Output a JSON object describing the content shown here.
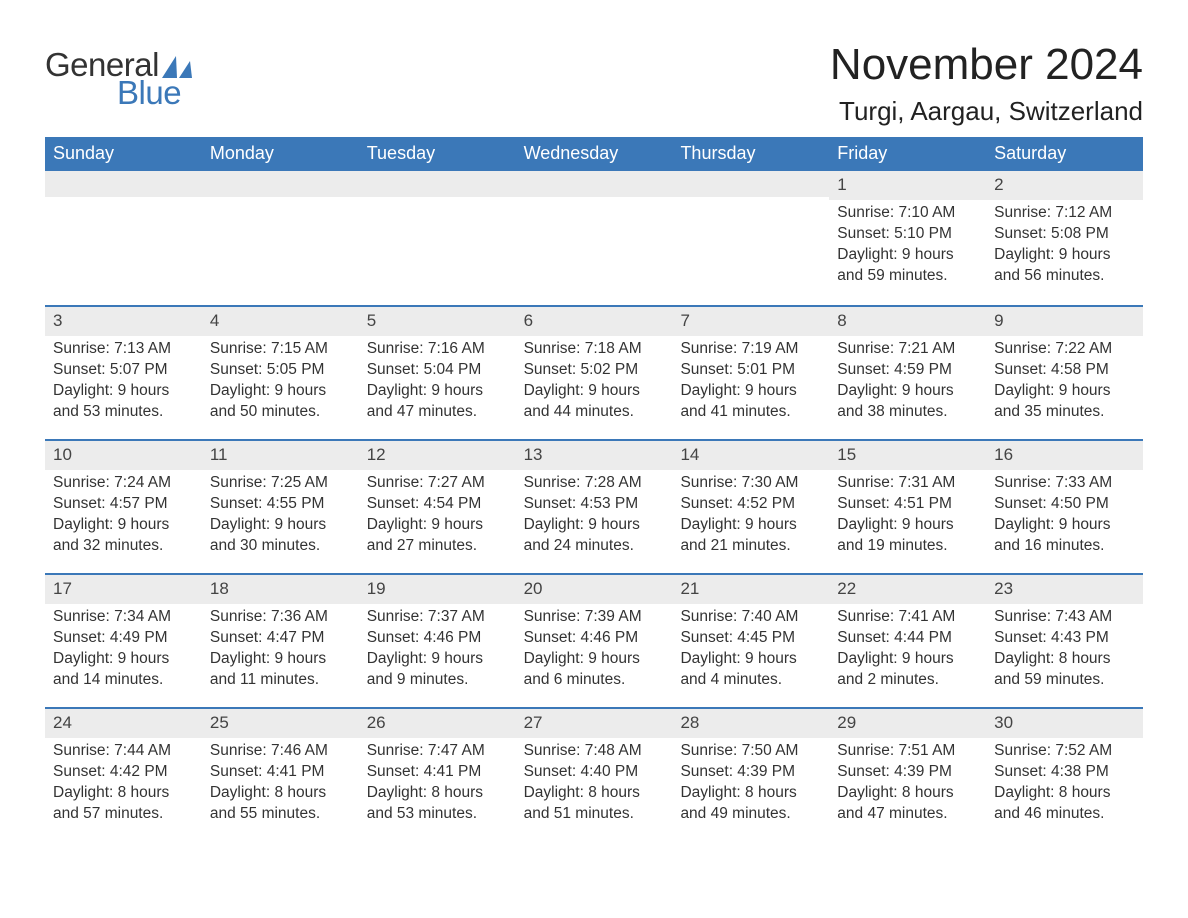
{
  "logo": {
    "text_general": "General",
    "text_blue": "Blue",
    "sail_color": "#3b78b8",
    "general_color": "#333333",
    "blue_color": "#3b78b8"
  },
  "header": {
    "month_title": "November 2024",
    "location": "Turgi, Aargau, Switzerland"
  },
  "colors": {
    "header_bg": "#3b78b8",
    "header_text": "#ffffff",
    "daynum_bg": "#ececec",
    "border": "#3b78b8",
    "body_text": "#333333",
    "background": "#ffffff"
  },
  "day_names": [
    "Sunday",
    "Monday",
    "Tuesday",
    "Wednesday",
    "Thursday",
    "Friday",
    "Saturday"
  ],
  "weeks": [
    [
      {
        "empty": true
      },
      {
        "empty": true
      },
      {
        "empty": true
      },
      {
        "empty": true
      },
      {
        "empty": true
      },
      {
        "num": "1",
        "sunrise": "Sunrise: 7:10 AM",
        "sunset": "Sunset: 5:10 PM",
        "daylight": "Daylight: 9 hours and 59 minutes."
      },
      {
        "num": "2",
        "sunrise": "Sunrise: 7:12 AM",
        "sunset": "Sunset: 5:08 PM",
        "daylight": "Daylight: 9 hours and 56 minutes."
      }
    ],
    [
      {
        "num": "3",
        "sunrise": "Sunrise: 7:13 AM",
        "sunset": "Sunset: 5:07 PM",
        "daylight": "Daylight: 9 hours and 53 minutes."
      },
      {
        "num": "4",
        "sunrise": "Sunrise: 7:15 AM",
        "sunset": "Sunset: 5:05 PM",
        "daylight": "Daylight: 9 hours and 50 minutes."
      },
      {
        "num": "5",
        "sunrise": "Sunrise: 7:16 AM",
        "sunset": "Sunset: 5:04 PM",
        "daylight": "Daylight: 9 hours and 47 minutes."
      },
      {
        "num": "6",
        "sunrise": "Sunrise: 7:18 AM",
        "sunset": "Sunset: 5:02 PM",
        "daylight": "Daylight: 9 hours and 44 minutes."
      },
      {
        "num": "7",
        "sunrise": "Sunrise: 7:19 AM",
        "sunset": "Sunset: 5:01 PM",
        "daylight": "Daylight: 9 hours and 41 minutes."
      },
      {
        "num": "8",
        "sunrise": "Sunrise: 7:21 AM",
        "sunset": "Sunset: 4:59 PM",
        "daylight": "Daylight: 9 hours and 38 minutes."
      },
      {
        "num": "9",
        "sunrise": "Sunrise: 7:22 AM",
        "sunset": "Sunset: 4:58 PM",
        "daylight": "Daylight: 9 hours and 35 minutes."
      }
    ],
    [
      {
        "num": "10",
        "sunrise": "Sunrise: 7:24 AM",
        "sunset": "Sunset: 4:57 PM",
        "daylight": "Daylight: 9 hours and 32 minutes."
      },
      {
        "num": "11",
        "sunrise": "Sunrise: 7:25 AM",
        "sunset": "Sunset: 4:55 PM",
        "daylight": "Daylight: 9 hours and 30 minutes."
      },
      {
        "num": "12",
        "sunrise": "Sunrise: 7:27 AM",
        "sunset": "Sunset: 4:54 PM",
        "daylight": "Daylight: 9 hours and 27 minutes."
      },
      {
        "num": "13",
        "sunrise": "Sunrise: 7:28 AM",
        "sunset": "Sunset: 4:53 PM",
        "daylight": "Daylight: 9 hours and 24 minutes."
      },
      {
        "num": "14",
        "sunrise": "Sunrise: 7:30 AM",
        "sunset": "Sunset: 4:52 PM",
        "daylight": "Daylight: 9 hours and 21 minutes."
      },
      {
        "num": "15",
        "sunrise": "Sunrise: 7:31 AM",
        "sunset": "Sunset: 4:51 PM",
        "daylight": "Daylight: 9 hours and 19 minutes."
      },
      {
        "num": "16",
        "sunrise": "Sunrise: 7:33 AM",
        "sunset": "Sunset: 4:50 PM",
        "daylight": "Daylight: 9 hours and 16 minutes."
      }
    ],
    [
      {
        "num": "17",
        "sunrise": "Sunrise: 7:34 AM",
        "sunset": "Sunset: 4:49 PM",
        "daylight": "Daylight: 9 hours and 14 minutes."
      },
      {
        "num": "18",
        "sunrise": "Sunrise: 7:36 AM",
        "sunset": "Sunset: 4:47 PM",
        "daylight": "Daylight: 9 hours and 11 minutes."
      },
      {
        "num": "19",
        "sunrise": "Sunrise: 7:37 AM",
        "sunset": "Sunset: 4:46 PM",
        "daylight": "Daylight: 9 hours and 9 minutes."
      },
      {
        "num": "20",
        "sunrise": "Sunrise: 7:39 AM",
        "sunset": "Sunset: 4:46 PM",
        "daylight": "Daylight: 9 hours and 6 minutes."
      },
      {
        "num": "21",
        "sunrise": "Sunrise: 7:40 AM",
        "sunset": "Sunset: 4:45 PM",
        "daylight": "Daylight: 9 hours and 4 minutes."
      },
      {
        "num": "22",
        "sunrise": "Sunrise: 7:41 AM",
        "sunset": "Sunset: 4:44 PM",
        "daylight": "Daylight: 9 hours and 2 minutes."
      },
      {
        "num": "23",
        "sunrise": "Sunrise: 7:43 AM",
        "sunset": "Sunset: 4:43 PM",
        "daylight": "Daylight: 8 hours and 59 minutes."
      }
    ],
    [
      {
        "num": "24",
        "sunrise": "Sunrise: 7:44 AM",
        "sunset": "Sunset: 4:42 PM",
        "daylight": "Daylight: 8 hours and 57 minutes."
      },
      {
        "num": "25",
        "sunrise": "Sunrise: 7:46 AM",
        "sunset": "Sunset: 4:41 PM",
        "daylight": "Daylight: 8 hours and 55 minutes."
      },
      {
        "num": "26",
        "sunrise": "Sunrise: 7:47 AM",
        "sunset": "Sunset: 4:41 PM",
        "daylight": "Daylight: 8 hours and 53 minutes."
      },
      {
        "num": "27",
        "sunrise": "Sunrise: 7:48 AM",
        "sunset": "Sunset: 4:40 PM",
        "daylight": "Daylight: 8 hours and 51 minutes."
      },
      {
        "num": "28",
        "sunrise": "Sunrise: 7:50 AM",
        "sunset": "Sunset: 4:39 PM",
        "daylight": "Daylight: 8 hours and 49 minutes."
      },
      {
        "num": "29",
        "sunrise": "Sunrise: 7:51 AM",
        "sunset": "Sunset: 4:39 PM",
        "daylight": "Daylight: 8 hours and 47 minutes."
      },
      {
        "num": "30",
        "sunrise": "Sunrise: 7:52 AM",
        "sunset": "Sunset: 4:38 PM",
        "daylight": "Daylight: 8 hours and 46 minutes."
      }
    ]
  ]
}
